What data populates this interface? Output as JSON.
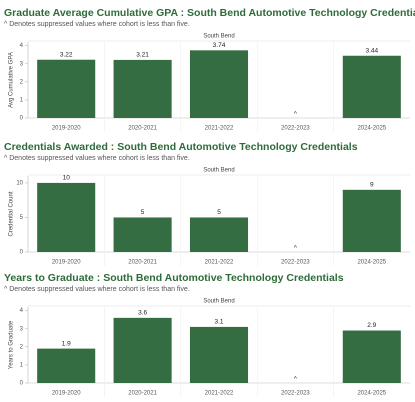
{
  "chart_data": [
    {
      "type": "bar",
      "title": "Graduate Average Cumulative GPA : South Bend Automotive Technology Credentials",
      "subtitle": "^ Denotes suppressed values where cohort is less than five.",
      "panel": "South Bend",
      "y_label": "Avg Cumulative GPA",
      "categories": [
        "2019-2020",
        "2020-2021",
        "2021-2022",
        "2022-2023",
        "2024-2025"
      ],
      "values": [
        3.22,
        3.21,
        3.74,
        null,
        3.44
      ],
      "suppressed_marker": "^",
      "color": "#356d42",
      "ylim": [
        0,
        4.2
      ],
      "yticks": [
        0,
        1,
        2,
        3,
        4
      ]
    },
    {
      "type": "bar",
      "title": "Credentials Awarded : South Bend Automotive Technology Credentials",
      "subtitle": "^ Denotes suppressed values where cohort is less than five.",
      "panel": "South Bend",
      "y_label": "Credential Count",
      "categories": [
        "2019-2020",
        "2020-2021",
        "2021-2022",
        "2022-2023",
        "2024-2025"
      ],
      "values": [
        10,
        5,
        5,
        null,
        9
      ],
      "suppressed_marker": "^",
      "color": "#356d42",
      "ylim": [
        0,
        11
      ],
      "yticks": [
        0,
        5,
        10
      ]
    },
    {
      "type": "bar",
      "title": "Years to Graduate : South Bend Automotive Technology Credentials",
      "subtitle": "^ Denotes suppressed values where cohort is less than five.",
      "panel": "South Bend",
      "y_label": "Years to Graduate",
      "categories": [
        "2019-2020",
        "2020-2021",
        "2021-2022",
        "2022-2023",
        "2024-2025"
      ],
      "values": [
        1.9,
        3.6,
        3.1,
        null,
        2.9
      ],
      "suppressed_marker": "^",
      "color": "#356d42",
      "ylim": [
        0,
        4.2
      ],
      "yticks": [
        0,
        1,
        2,
        3,
        4
      ]
    }
  ]
}
